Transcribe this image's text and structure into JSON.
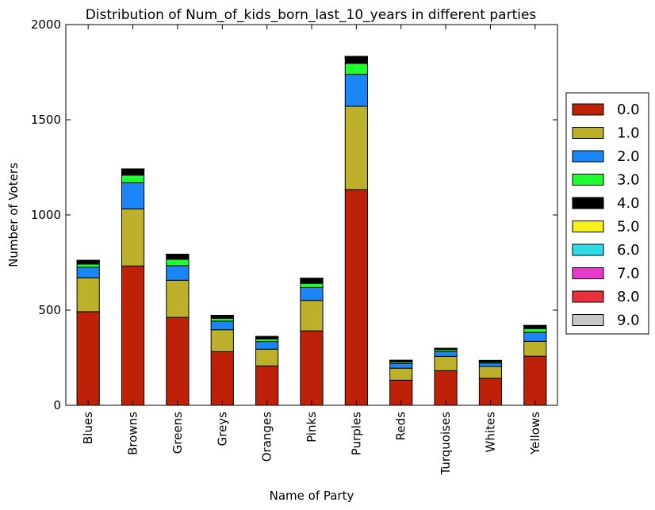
{
  "chart_data": {
    "type": "bar",
    "stacked": true,
    "title": "Distribution of Num_of_kids_born_last_10_years in different parties",
    "xlabel": "Name of Party",
    "ylabel": "Number of Voters",
    "ylim": [
      0,
      2000
    ],
    "yticks": [
      "0",
      "500",
      "1000",
      "1500",
      "2000"
    ],
    "grid": false,
    "legend_position": "right",
    "categories": [
      "Blues",
      "Browns",
      "Greens",
      "Greys",
      "Oranges",
      "Pinks",
      "Purples",
      "Reds",
      "Turquoises",
      "Whites",
      "Yellows"
    ],
    "series": [
      {
        "name": "0.0",
        "color": "#bf2108",
        "values": [
          492,
          732,
          462,
          282,
          207,
          391,
          1133,
          132,
          182,
          142,
          258
        ]
      },
      {
        "name": "1.0",
        "color": "#bdb12c",
        "values": [
          178,
          300,
          195,
          115,
          88,
          160,
          438,
          63,
          75,
          62,
          78
        ]
      },
      {
        "name": "2.0",
        "color": "#1c85f8",
        "values": [
          55,
          137,
          77,
          45,
          40,
          68,
          168,
          24,
          25,
          18,
          47
        ]
      },
      {
        "name": "3.0",
        "color": "#1ffd30",
        "values": [
          17,
          40,
          33,
          15,
          13,
          22,
          57,
          8,
          10,
          6,
          20
        ]
      },
      {
        "name": "4.0",
        "color": "#000000",
        "values": [
          14,
          25,
          20,
          12,
          12,
          22,
          26,
          8,
          6,
          6,
          14
        ]
      },
      {
        "name": "5.0",
        "color": "#f6f01d",
        "values": [
          2,
          3,
          2,
          2,
          1,
          2,
          4,
          1,
          1,
          1,
          1
        ]
      },
      {
        "name": "6.0",
        "color": "#2fdbe6",
        "values": [
          1,
          2,
          2,
          1,
          1,
          1,
          3,
          1,
          1,
          1,
          1
        ]
      },
      {
        "name": "7.0",
        "color": "#e83ac9",
        "values": [
          1,
          1,
          1,
          1,
          0,
          1,
          2,
          0,
          0,
          0,
          1
        ]
      },
      {
        "name": "8.0",
        "color": "#e8303f",
        "values": [
          1,
          1,
          1,
          0,
          0,
          1,
          1,
          0,
          0,
          0,
          0
        ]
      },
      {
        "name": "9.0",
        "color": "#c8c8c8",
        "values": [
          1,
          1,
          1,
          0,
          0,
          0,
          1,
          0,
          0,
          0,
          0
        ]
      }
    ]
  }
}
